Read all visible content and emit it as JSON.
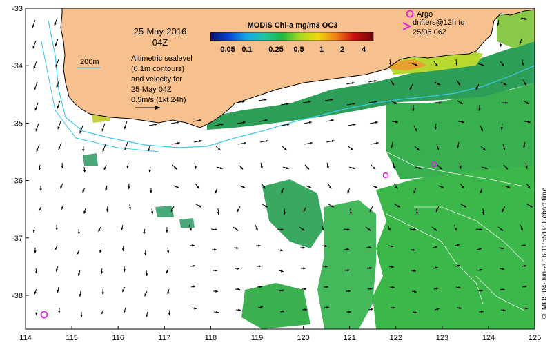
{
  "map": {
    "date_line1": "25-May-2016",
    "date_line2": "04Z",
    "altimetry_lines": [
      "Altimetric sealevel",
      "(0.1m contours)",
      "and velocity for",
      "25-May 04Z",
      "0.5m/s (1kt 24h)"
    ],
    "isobath_label": "200m",
    "colorbar": {
      "title": "MODIS Chl-a mg/m3 OC3",
      "labels": [
        "0.05",
        "0.1",
        "0.25",
        "0.5",
        "1",
        "2",
        "4"
      ],
      "colors": [
        "#08106e",
        "#0a40d8",
        "#10a8e8",
        "#18c8a0",
        "#20b840",
        "#a8d820",
        "#f0d810",
        "#f08018",
        "#c81010",
        "#700808"
      ]
    },
    "argo_label": "Argo",
    "drifter_lines": [
      "drifters@12h to",
      "25/05 06Z"
    ],
    "credit": "© IMOS 04-Jun-2016 11:55:08 Hobart time",
    "x_ticks": [
      "114",
      "115",
      "116",
      "117",
      "118",
      "119",
      "120",
      "121",
      "122",
      "123",
      "124",
      "125"
    ],
    "y_ticks": [
      "-33",
      "-34",
      "-35",
      "-36",
      "-37",
      "-38"
    ],
    "land_color": "#f7c18f",
    "coastline_color": "#000000",
    "isobath_color": "#3fc8e8",
    "argo_color": "#e020e0",
    "drifter_color": "#e020e0"
  }
}
